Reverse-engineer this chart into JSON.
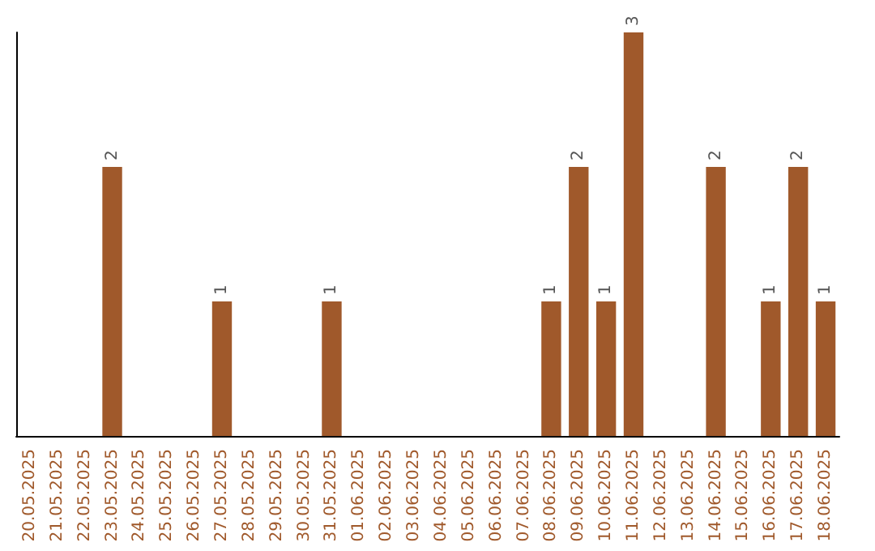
{
  "chart_data": {
    "type": "bar",
    "categories": [
      "20.05.2025",
      "21.05.2025",
      "22.05.2025",
      "23.05.2025",
      "24.05.2025",
      "25.05.2025",
      "26.05.2025",
      "27.05.2025",
      "28.05.2025",
      "29.05.2025",
      "30.05.2025",
      "31.05.2025",
      "01.06.2025",
      "02.06.2025",
      "03.06.2025",
      "04.06.2025",
      "05.06.2025",
      "06.06.2025",
      "07.06.2025",
      "08.06.2025",
      "09.06.2025",
      "10.06.2025",
      "11.06.2025",
      "12.06.2025",
      "13.06.2025",
      "14.06.2025",
      "15.06.2025",
      "16.06.2025",
      "17.06.2025",
      "18.06.2025"
    ],
    "values": [
      0,
      0,
      0,
      2,
      0,
      0,
      0,
      1,
      0,
      0,
      0,
      1,
      0,
      0,
      0,
      0,
      0,
      0,
      0,
      1,
      2,
      1,
      3,
      0,
      0,
      2,
      0,
      1,
      2,
      1
    ],
    "color": "#a0592b",
    "value_labels": [
      null,
      null,
      null,
      "2",
      null,
      null,
      null,
      "1",
      null,
      null,
      null,
      "1",
      null,
      null,
      null,
      null,
      null,
      null,
      null,
      "1",
      "2",
      "1",
      "3",
      null,
      null,
      "2",
      null,
      "1",
      "2",
      "1"
    ],
    "tick_labels": "x",
    "grid": false
  }
}
